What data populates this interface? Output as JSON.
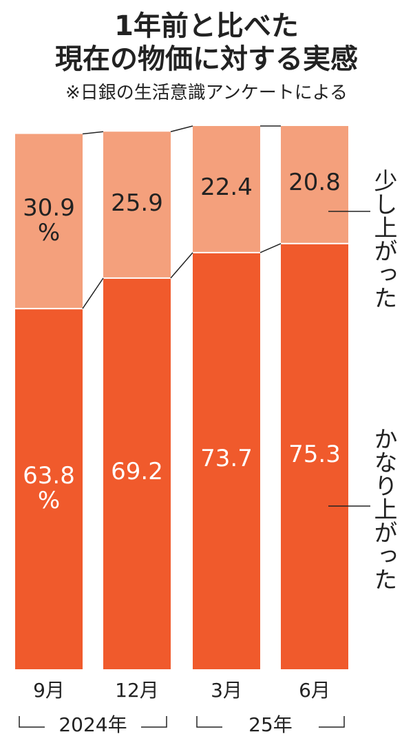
{
  "chart_data": {
    "type": "stacked_bar",
    "title": "1年前と比べた\n現在の物価に対する実感",
    "subtitle": "※日銀の生活意識アンケートによる",
    "categories": [
      "9月",
      "12月",
      "3月",
      "6月"
    ],
    "x_groups": [
      "2024年",
      "25年"
    ],
    "series": [
      {
        "name": "かなり上がった",
        "color": "#f05a2c",
        "values": [
          63.8,
          69.2,
          73.7,
          75.3
        ],
        "value_labels": [
          "63.8\n%",
          "69.2",
          "73.7",
          "75.3"
        ]
      },
      {
        "name": "少し上がった",
        "color": "#f4a07c",
        "values": [
          30.9,
          25.9,
          22.4,
          20.8
        ],
        "value_labels": [
          "30.9\n%",
          "25.9",
          "22.4",
          "20.8"
        ]
      }
    ],
    "ylim": [
      0,
      100
    ]
  }
}
